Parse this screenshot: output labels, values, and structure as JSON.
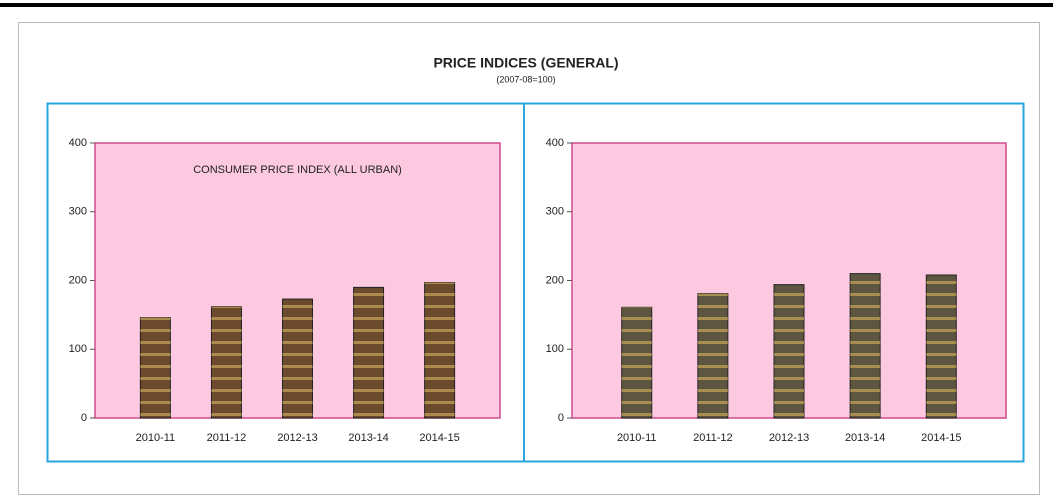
{
  "title": "PRICE INDICES (GENERAL)",
  "subtitle": "(2007-08=100)",
  "chart_data": [
    {
      "type": "bar",
      "annotation": "CONSUMER PRICE INDEX (ALL URBAN)",
      "categories": [
        "2010-11",
        "2011-12",
        "2012-13",
        "2013-14",
        "2014-15"
      ],
      "values": [
        146,
        162,
        173,
        190,
        197
      ],
      "color": "#6b4a2e",
      "ylim": [
        0,
        400
      ],
      "yticks": [
        0,
        100,
        200,
        300,
        400
      ]
    },
    {
      "type": "bar",
      "categories": [
        "2010-11",
        "2011-12",
        "2012-13",
        "2013-14",
        "2014-15"
      ],
      "values": [
        161,
        181,
        194,
        210,
        208
      ],
      "color": "#5e5641",
      "ylim": [
        0,
        400
      ],
      "yticks": [
        0,
        100,
        200,
        300,
        400
      ]
    }
  ]
}
